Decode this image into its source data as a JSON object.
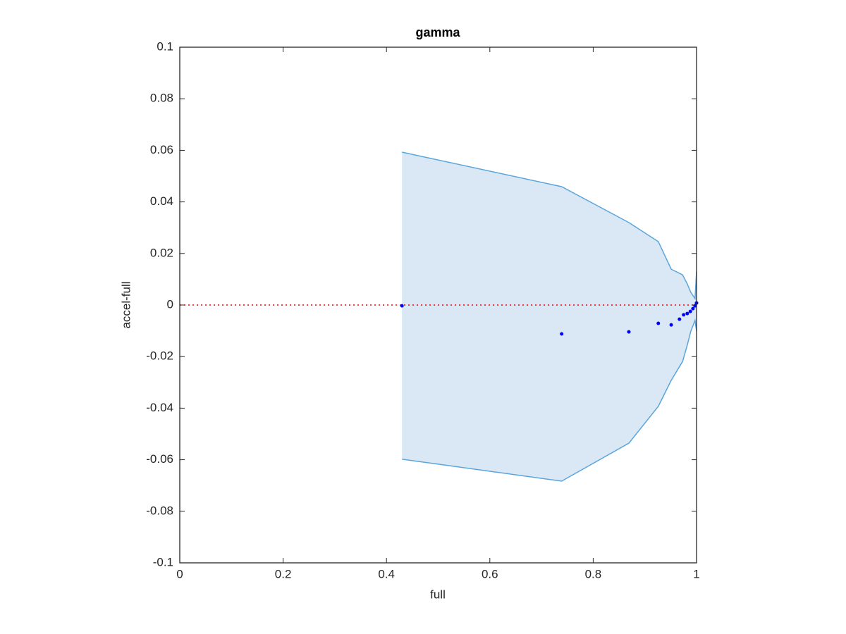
{
  "chart_data": {
    "type": "scatter",
    "title": "gamma",
    "x_label": "full",
    "y_label": "accel-full",
    "xlim": [
      0,
      1
    ],
    "ylim": [
      -0.1,
      0.1
    ],
    "xticks": [
      0,
      0.2,
      0.4,
      0.6,
      0.8,
      1
    ],
    "yticks": [
      -0.1,
      -0.08,
      -0.06,
      -0.04,
      -0.02,
      0,
      0.02,
      0.04,
      0.06,
      0.08,
      0.1
    ],
    "reference_line": {
      "value": 0,
      "color": "#ff0000"
    },
    "band": {
      "color": "#5aa5dc",
      "fill": "#d9e8f4",
      "x": [
        0.43,
        0.739,
        0.869,
        0.926,
        0.951,
        0.973,
        0.982,
        0.989,
        0.997,
        1.0
      ],
      "upper": [
        0.0593,
        0.0459,
        0.032,
        0.0246,
        0.0139,
        0.0117,
        0.0082,
        0.0049,
        0.0025,
        0.013
      ],
      "lower": [
        -0.0598,
        -0.0683,
        -0.0536,
        -0.0393,
        -0.0292,
        -0.0219,
        -0.0156,
        -0.0101,
        -0.006,
        -0.0101
      ]
    },
    "series": [
      {
        "color": "#0000ff",
        "x": [
          0.43,
          0.739,
          0.869,
          0.926,
          0.951,
          0.967,
          0.975,
          0.982,
          0.988,
          0.993,
          0.997,
          1.0
        ],
        "values": [
          -0.0003,
          -0.0112,
          -0.0104,
          -0.0071,
          -0.0077,
          -0.0055,
          -0.0038,
          -0.0033,
          -0.0025,
          -0.0014,
          -0.0003,
          0.0008
        ]
      }
    ]
  }
}
